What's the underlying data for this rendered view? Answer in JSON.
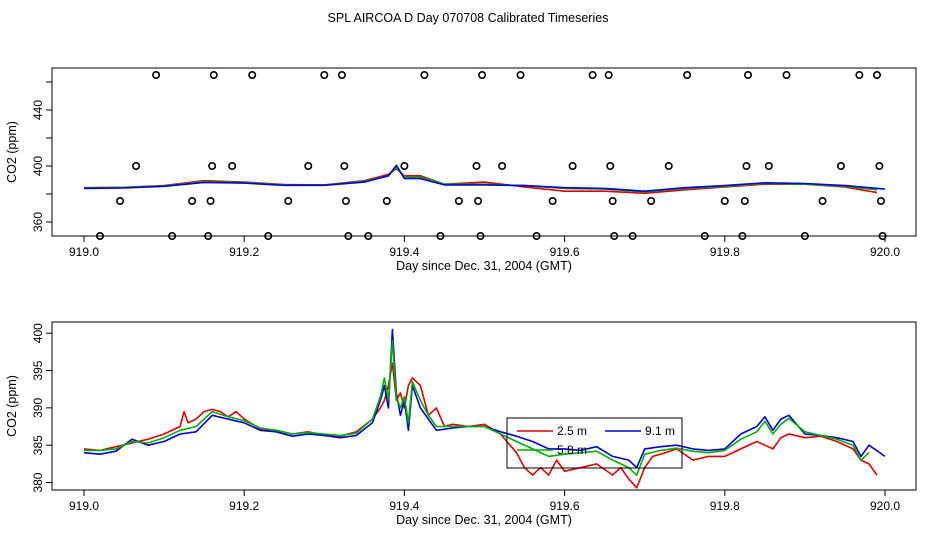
{
  "figure": {
    "title": "SPL AIRCOA D  Day 070708  Calibrated Timeseries"
  },
  "colors": {
    "red": "#e00000",
    "green": "#00b000",
    "blue": "#0000dd",
    "axis": "#000000"
  },
  "chart_data": [
    {
      "type": "line",
      "title": "",
      "xlabel": "Day since Dec. 31, 2004 (GMT)",
      "ylabel": "CO2 (ppm)",
      "xlim": [
        919.0,
        920.0
      ],
      "ylim": [
        350,
        470
      ],
      "xticks": [
        919.0,
        919.2,
        919.4,
        919.6,
        919.8,
        920.0
      ],
      "xtick_labels": [
        "919.0",
        "919.2",
        "919.4",
        "919.6",
        "919.8",
        "920.0"
      ],
      "yticks": [
        360,
        400,
        440
      ],
      "ytick_labels": [
        "360",
        "400",
        "440"
      ],
      "series": [
        {
          "name": "red",
          "color": "#e00000",
          "x": [
            919.0,
            919.05,
            919.1,
            919.15,
            919.2,
            919.25,
            919.3,
            919.35,
            919.38,
            919.39,
            919.4,
            919.42,
            919.45,
            919.5,
            919.55,
            919.6,
            919.65,
            919.7,
            919.75,
            919.8,
            919.85,
            919.9,
            919.95,
            919.99
          ],
          "y": [
            384.5,
            384.8,
            386.0,
            389.5,
            388.5,
            386.8,
            386.5,
            389.5,
            394,
            398,
            393,
            393,
            387,
            388.5,
            385,
            382,
            382,
            380.5,
            383,
            385,
            387,
            387,
            385,
            381
          ]
        },
        {
          "name": "green",
          "color": "#00b000",
          "x": [
            919.0,
            919.05,
            919.1,
            919.15,
            919.2,
            919.25,
            919.3,
            919.35,
            919.38,
            919.39,
            919.4,
            919.42,
            919.45,
            919.5,
            919.55,
            919.6,
            919.65,
            919.7,
            919.75,
            919.8,
            919.85,
            919.9,
            919.95,
            919.99
          ],
          "y": [
            384.3,
            384.6,
            385.8,
            388.8,
            388.2,
            386.5,
            386.4,
            389.0,
            393,
            399,
            392,
            392,
            387,
            387.0,
            386,
            384,
            383.5,
            381.5,
            384,
            385.5,
            387.5,
            387,
            385.5,
            383
          ]
        },
        {
          "name": "blue",
          "color": "#0000dd",
          "x": [
            919.0,
            919.05,
            919.1,
            919.15,
            919.2,
            919.25,
            919.3,
            919.35,
            919.38,
            919.39,
            919.4,
            919.42,
            919.45,
            919.5,
            919.55,
            919.6,
            919.65,
            919.7,
            919.75,
            919.8,
            919.85,
            919.9,
            919.95,
            920.0
          ],
          "y": [
            384.0,
            384.3,
            385.5,
            388.3,
            387.8,
            386.2,
            386.2,
            388.5,
            393,
            400.5,
            391,
            391,
            386.5,
            386.5,
            386,
            384.5,
            384,
            382,
            384.5,
            386,
            388,
            387.5,
            386,
            383.5
          ]
        }
      ],
      "markers": {
        "symbol": "circle",
        "x": [
          919.02,
          919.045,
          919.065,
          919.09,
          919.11,
          919.135,
          919.155,
          919.158,
          919.16,
          919.162,
          919.185,
          919.21,
          919.23,
          919.255,
          919.28,
          919.3,
          919.322,
          919.325,
          919.327,
          919.33,
          919.355,
          919.378,
          919.4,
          919.425,
          919.445,
          919.468,
          919.49,
          919.492,
          919.495,
          919.497,
          919.522,
          919.545,
          919.565,
          919.585,
          919.61,
          919.635,
          919.655,
          919.657,
          919.66,
          919.662,
          919.685,
          919.708,
          919.73,
          919.753,
          919.775,
          919.8,
          919.822,
          919.825,
          919.827,
          919.829,
          919.855,
          919.877,
          919.9,
          919.922,
          919.945,
          919.968,
          919.99,
          919.993,
          919.995,
          919.997
        ],
        "y": [
          350,
          375,
          400,
          465,
          350,
          375,
          350,
          375,
          400,
          465,
          400,
          465,
          350,
          375,
          400,
          465,
          465,
          400,
          375,
          350,
          350,
          375,
          400,
          465,
          350,
          375,
          400,
          375,
          350,
          465,
          400,
          465,
          350,
          375,
          400,
          465,
          465,
          400,
          375,
          350,
          350,
          375,
          400,
          465,
          350,
          375,
          350,
          375,
          400,
          465,
          400,
          465,
          350,
          375,
          400,
          465,
          465,
          400,
          375,
          350
        ]
      }
    },
    {
      "type": "line",
      "title": "",
      "xlabel": "Day since Dec. 31, 2004 (GMT)",
      "ylabel": "CO2 (ppm)",
      "xlim": [
        919.0,
        920.0
      ],
      "ylim": [
        379,
        401.5
      ],
      "xticks": [
        919.0,
        919.2,
        919.4,
        919.6,
        919.8,
        920.0
      ],
      "xtick_labels": [
        "919.0",
        "919.2",
        "919.4",
        "919.6",
        "919.8",
        "920.0"
      ],
      "yticks": [
        380,
        385,
        390,
        395,
        400
      ],
      "ytick_labels": [
        "380",
        "385",
        "390",
        "395",
        "400"
      ],
      "legend": {
        "position": "center-right",
        "entries": [
          "2.5 m",
          "9.1 m",
          "5.8 m"
        ]
      },
      "series": [
        {
          "name": "2.5 m",
          "color": "#e00000",
          "x": [
            919.0,
            919.02,
            919.04,
            919.06,
            919.08,
            919.1,
            919.12,
            919.125,
            919.13,
            919.14,
            919.15,
            919.16,
            919.17,
            919.18,
            919.19,
            919.2,
            919.22,
            919.24,
            919.26,
            919.28,
            919.3,
            919.32,
            919.34,
            919.36,
            919.37,
            919.375,
            919.38,
            919.385,
            919.39,
            919.395,
            919.4,
            919.405,
            919.41,
            919.42,
            919.43,
            919.44,
            919.45,
            919.46,
            919.48,
            919.5,
            919.52,
            919.54,
            919.55,
            919.56,
            919.57,
            919.58,
            919.59,
            919.6,
            919.62,
            919.64,
            919.66,
            919.67,
            919.68,
            919.69,
            919.7,
            919.71,
            919.72,
            919.74,
            919.76,
            919.78,
            919.8,
            919.82,
            919.84,
            919.85,
            919.86,
            919.87,
            919.88,
            919.9,
            919.92,
            919.94,
            919.96,
            919.97,
            919.98,
            919.99
          ],
          "y": [
            384.5,
            384.3,
            384.8,
            385.3,
            385.8,
            386.5,
            387.5,
            389.5,
            388,
            388.5,
            389.5,
            389.8,
            389.5,
            388.8,
            389.5,
            388.5,
            387.2,
            387,
            386.5,
            386.8,
            386.3,
            386.2,
            386.8,
            388.5,
            390,
            391,
            393,
            396,
            391,
            392,
            390,
            393,
            394,
            393,
            389,
            390,
            387.5,
            387.8,
            387.5,
            387.8,
            386.5,
            384,
            382,
            381,
            382,
            381,
            383,
            381.5,
            382,
            382.5,
            381,
            382,
            380.5,
            379.3,
            382,
            383.5,
            383.8,
            384.5,
            383,
            383.5,
            383.5,
            384.5,
            385.5,
            385,
            384.5,
            386,
            386.5,
            386,
            386.2,
            385.5,
            384.5,
            383,
            382.5,
            381
          ]
        },
        {
          "name": "9.1 m",
          "color": "#0000dd",
          "x": [
            919.0,
            919.02,
            919.04,
            919.06,
            919.08,
            919.1,
            919.12,
            919.14,
            919.16,
            919.18,
            919.2,
            919.22,
            919.24,
            919.26,
            919.28,
            919.3,
            919.32,
            919.34,
            919.36,
            919.37,
            919.375,
            919.38,
            919.385,
            919.39,
            919.395,
            919.4,
            919.405,
            919.41,
            919.42,
            919.43,
            919.44,
            919.46,
            919.48,
            919.5,
            919.52,
            919.54,
            919.56,
            919.58,
            919.6,
            919.62,
            919.64,
            919.66,
            919.68,
            919.69,
            919.7,
            919.72,
            919.74,
            919.76,
            919.78,
            919.8,
            919.82,
            919.84,
            919.85,
            919.86,
            919.87,
            919.88,
            919.9,
            919.92,
            919.94,
            919.96,
            919.97,
            919.98,
            920.0
          ],
          "y": [
            384.0,
            383.8,
            384.2,
            385.8,
            385.0,
            385.5,
            386.5,
            386.8,
            389.0,
            388.5,
            388.0,
            387.0,
            386.8,
            386.2,
            386.5,
            386.3,
            386.0,
            386.3,
            388.0,
            391,
            393,
            390,
            400.5,
            392,
            389,
            391,
            387,
            393,
            390,
            388.5,
            387,
            387.3,
            387.5,
            387.5,
            386.8,
            386.2,
            385.5,
            384.5,
            384.5,
            384.3,
            384.8,
            383.5,
            383,
            382,
            384.5,
            384.8,
            385,
            384.5,
            384.3,
            384.5,
            386.5,
            387.5,
            388.8,
            387,
            388.5,
            389,
            386.5,
            386.3,
            386,
            385.5,
            383.5,
            385,
            383.5
          ]
        },
        {
          "name": "5.8 m",
          "color": "#00b000",
          "x": [
            919.0,
            919.02,
            919.04,
            919.06,
            919.08,
            919.1,
            919.12,
            919.14,
            919.16,
            919.18,
            919.2,
            919.22,
            919.24,
            919.26,
            919.28,
            919.3,
            919.32,
            919.34,
            919.36,
            919.37,
            919.375,
            919.38,
            919.385,
            919.39,
            919.395,
            919.4,
            919.405,
            919.41,
            919.42,
            919.43,
            919.44,
            919.46,
            919.48,
            919.5,
            919.52,
            919.54,
            919.56,
            919.58,
            919.6,
            919.62,
            919.64,
            919.66,
            919.68,
            919.69,
            919.7,
            919.72,
            919.74,
            919.76,
            919.78,
            919.8,
            919.82,
            919.84,
            919.85,
            919.86,
            919.87,
            919.88,
            919.9,
            919.92,
            919.94,
            919.96,
            919.97,
            919.98
          ],
          "y": [
            384.3,
            384.3,
            384.5,
            385.5,
            385.3,
            386.0,
            387.0,
            387.5,
            389.5,
            388.8,
            388.3,
            387.3,
            387.0,
            386.5,
            386.7,
            386.5,
            386.3,
            386.6,
            388.5,
            391.5,
            394,
            391,
            399,
            391.5,
            390,
            391.5,
            388,
            393.5,
            391,
            389,
            387.5,
            387.5,
            387.5,
            387.5,
            386.5,
            385.5,
            384.5,
            383.5,
            383.8,
            384,
            384.2,
            383,
            382,
            381,
            383.8,
            384.3,
            384.6,
            384.2,
            384,
            384.3,
            385.8,
            386.8,
            388.2,
            386.5,
            387.8,
            388.6,
            386.8,
            386.3,
            385.8,
            385,
            383,
            384
          ]
        }
      ]
    }
  ]
}
